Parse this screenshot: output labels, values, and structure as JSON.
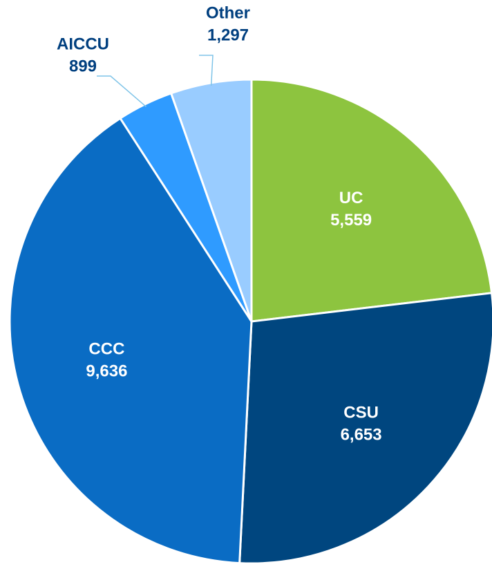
{
  "chart_data": {
    "type": "pie",
    "categories": [
      "UC",
      "CSU",
      "CCC",
      "AICCU",
      "Other"
    ],
    "values": [
      5559,
      6653,
      9636,
      899,
      1297
    ],
    "value_labels": [
      "5,559",
      "6,653",
      "9,636",
      "899",
      "1,297"
    ],
    "colors": [
      "#8dc43f",
      "#00467f",
      "#0a6cc4",
      "#2f9bff",
      "#99ccff"
    ]
  }
}
